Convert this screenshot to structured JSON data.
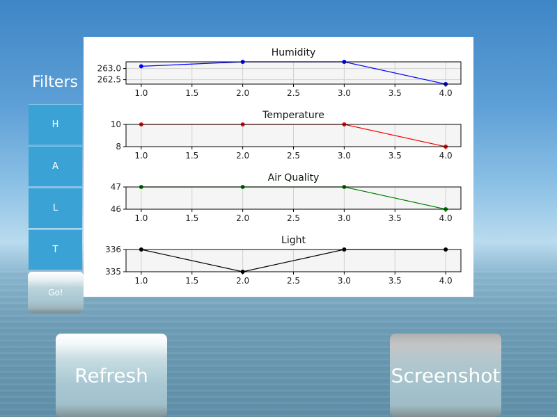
{
  "sidebar": {
    "title": "Filters",
    "buttons": [
      {
        "label": "H"
      },
      {
        "label": "A"
      },
      {
        "label": "L"
      },
      {
        "label": "T"
      }
    ],
    "go_label": "Go!"
  },
  "actions": {
    "refresh_label": "Refresh",
    "screenshot_label": "Screenshot"
  },
  "chart_data": [
    {
      "type": "line",
      "title": "Humidity",
      "color": "#0000ff",
      "x": [
        1.0,
        2.0,
        3.0,
        4.0
      ],
      "y": [
        263.1,
        263.3,
        263.3,
        262.3
      ],
      "xlim": [
        0.85,
        4.15
      ],
      "ylim": [
        262.3,
        263.3
      ],
      "xticks": [
        "1.0",
        "1.5",
        "2.0",
        "2.5",
        "3.0",
        "3.5",
        "4.0"
      ],
      "yticks": [
        {
          "value": 263.0,
          "label": "263.0"
        },
        {
          "value": 262.5,
          "label": "262.5"
        }
      ],
      "grid": true
    },
    {
      "type": "line",
      "title": "Temperature",
      "color": "#ff0000",
      "x": [
        1.0,
        2.0,
        3.0,
        4.0
      ],
      "y": [
        10,
        10,
        10,
        8
      ],
      "xlim": [
        0.85,
        4.15
      ],
      "ylim": [
        8,
        10
      ],
      "xticks": [
        "1.0",
        "1.5",
        "2.0",
        "2.5",
        "3.0",
        "3.5",
        "4.0"
      ],
      "yticks": [
        {
          "value": 10,
          "label": "10"
        },
        {
          "value": 8,
          "label": "8"
        }
      ],
      "grid": true
    },
    {
      "type": "line",
      "title": "Air Quality",
      "color": "#008000",
      "x": [
        1.0,
        2.0,
        3.0,
        4.0
      ],
      "y": [
        47,
        47,
        47,
        46
      ],
      "xlim": [
        0.85,
        4.15
      ],
      "ylim": [
        46,
        47
      ],
      "xticks": [
        "1.0",
        "1.5",
        "2.0",
        "2.5",
        "3.0",
        "3.5",
        "4.0"
      ],
      "yticks": [
        {
          "value": 47,
          "label": "47"
        },
        {
          "value": 46,
          "label": "46"
        }
      ],
      "grid": true
    },
    {
      "type": "line",
      "title": "Light",
      "color": "#000000",
      "x": [
        1.0,
        2.0,
        3.0,
        4.0
      ],
      "y": [
        336,
        335,
        336,
        336
      ],
      "xlim": [
        0.85,
        4.15
      ],
      "ylim": [
        335,
        336
      ],
      "xticks": [
        "1.0",
        "1.5",
        "2.0",
        "2.5",
        "3.0",
        "3.5",
        "4.0"
      ],
      "yticks": [
        {
          "value": 336,
          "label": "336"
        },
        {
          "value": 335,
          "label": "335"
        }
      ],
      "grid": true
    }
  ]
}
